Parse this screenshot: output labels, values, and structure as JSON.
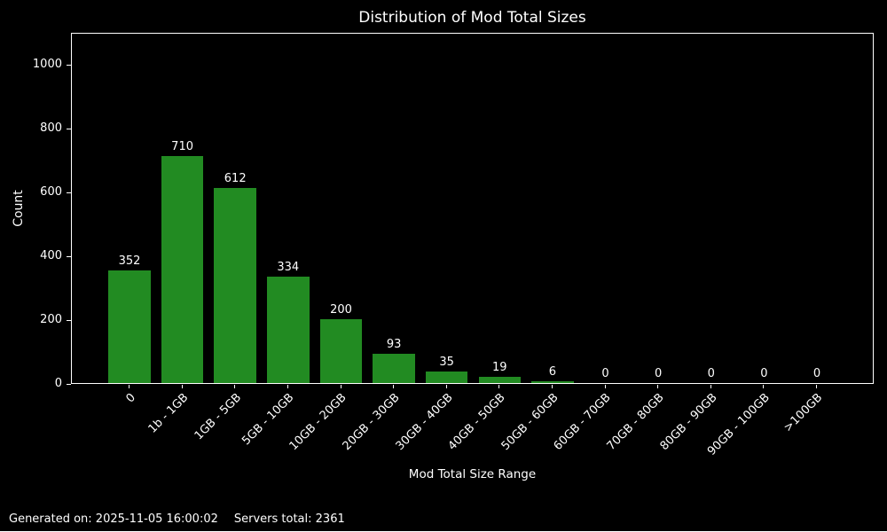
{
  "chart_data": {
    "type": "bar",
    "title": "Distribution of Mod Total Sizes",
    "xlabel": "Mod Total Size Range",
    "ylabel": "Count",
    "categories": [
      "0",
      "1b - 1GB",
      "1GB - 5GB",
      "5GB - 10GB",
      "10GB - 20GB",
      "20GB - 30GB",
      "30GB - 40GB",
      "40GB - 50GB",
      "50GB - 60GB",
      "60GB - 70GB",
      "70GB - 80GB",
      "80GB - 90GB",
      "90GB - 100GB",
      ">100GB"
    ],
    "values": [
      352,
      710,
      612,
      334,
      200,
      93,
      35,
      19,
      6,
      0,
      0,
      0,
      0,
      0
    ],
    "ylim": [
      0,
      1100
    ],
    "yticks": [
      0,
      200,
      400,
      600,
      800,
      1000
    ],
    "x_tick_rotation": 45,
    "bar_width_fraction": 0.8,
    "grid": false,
    "legend": false,
    "value_labels_shown": true,
    "colors": {
      "bar": "#228B22",
      "background": "#000000",
      "text": "#ffffff",
      "spine": "#ffffff"
    }
  },
  "footer": {
    "generated": "Generated on: 2025-11-05 16:00:02",
    "servers_total": "Servers total: 2361"
  }
}
